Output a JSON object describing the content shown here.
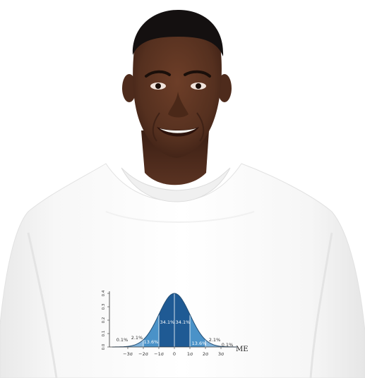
{
  "photo": {
    "subject": "model-wearing-tshirt",
    "background_color": "#ffffff",
    "shirt_color": "#ffffff",
    "skin_color": "#5a3220",
    "hair_color": "#141010"
  },
  "print": {
    "fill_colors": {
      "center": "#1f5a94",
      "one_sigma": "#2f73ad",
      "two_sigma": "#4a92c8",
      "three_sigma": "#7fb3dc",
      "tail": "#a9ccea"
    },
    "y_ticks": [
      "0.0",
      "0.1",
      "0.2",
      "0.3",
      "0.4"
    ],
    "x_ticks": [
      "−3σ",
      "−2σ",
      "−1σ",
      "0",
      "1σ",
      "2σ",
      "3σ"
    ],
    "region_labels": [
      "0.1%",
      "2.1%",
      "13.6%",
      "34.1%",
      "34.1%",
      "13.6%",
      "2.1%",
      "0.1%"
    ],
    "axis_label": "ME"
  }
}
